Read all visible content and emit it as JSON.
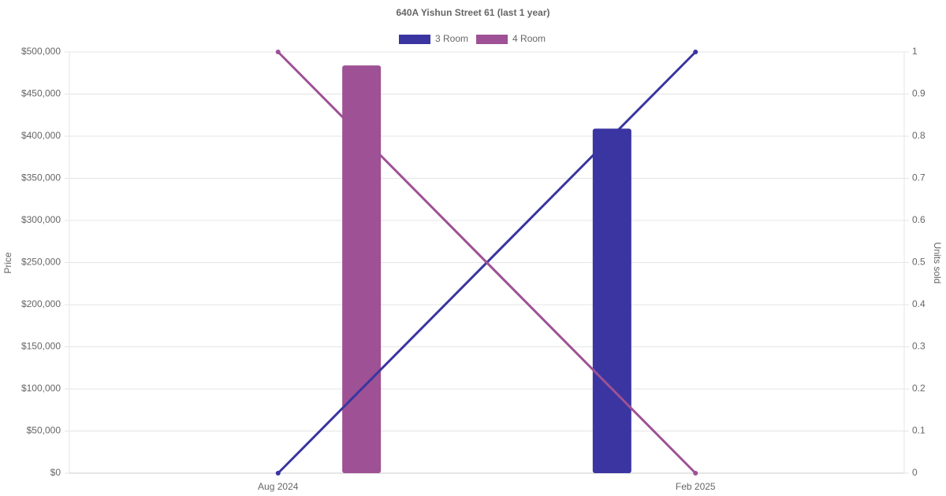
{
  "chart_data": {
    "type": "bar-line",
    "title": "640A Yishun Street 61 (last 1 year)",
    "categories": [
      "Aug 2024",
      "Feb 2025"
    ],
    "series": [
      {
        "name": "3 Room",
        "color": "#3a35a0",
        "values": [
          null,
          409000
        ],
        "units": [
          0,
          1
        ]
      },
      {
        "name": "4 Room",
        "color": "#9e5194",
        "values": [
          484000,
          null
        ],
        "units": [
          1,
          0
        ]
      }
    ],
    "y_label": "Price",
    "y2_label": "Units sold",
    "ylim": [
      0,
      500000
    ],
    "yticks": [
      {
        "value": 0,
        "label": "$0"
      },
      {
        "value": 50000,
        "label": "$50,000"
      },
      {
        "value": 100000,
        "label": "$100,000"
      },
      {
        "value": 150000,
        "label": "$150,000"
      },
      {
        "value": 200000,
        "label": "$200,000"
      },
      {
        "value": 250000,
        "label": "$250,000"
      },
      {
        "value": 300000,
        "label": "$300,000"
      },
      {
        "value": 350000,
        "label": "$350,000"
      },
      {
        "value": 400000,
        "label": "$400,000"
      },
      {
        "value": 450000,
        "label": "$450,000"
      },
      {
        "value": 500000,
        "label": "$500,000"
      }
    ],
    "y2lim": [
      0,
      1
    ],
    "y2ticks": [
      0,
      0.1,
      0.2,
      0.3,
      0.4,
      0.5,
      0.6,
      0.7,
      0.8,
      0.9,
      1
    ],
    "grid": true,
    "legend": "top"
  }
}
